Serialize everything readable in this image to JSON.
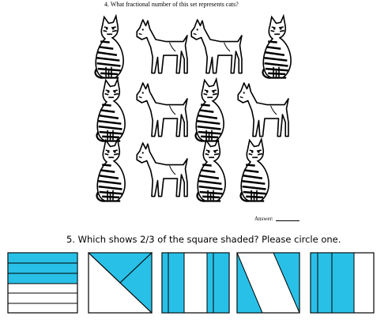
{
  "question4": {
    "text": "4.   What fractional number of this set represents cats?",
    "answer_label": "Answer:",
    "animals": [
      [
        "cat",
        "dog",
        "dog",
        "cat"
      ],
      [
        "cat",
        "dog",
        "cat",
        "dog"
      ],
      [
        "cat",
        "dog",
        "cat",
        "cat"
      ]
    ]
  },
  "question5": {
    "text": "5. Which shows 2/3 of the square shaded? Please circle one.",
    "fill_color": "#29c0e7",
    "options": [
      "three-stripes-horizontal",
      "triangle-split",
      "three-columns-outer-shaded",
      "parallelogram-split",
      "three-columns-left-mid-shaded"
    ]
  }
}
